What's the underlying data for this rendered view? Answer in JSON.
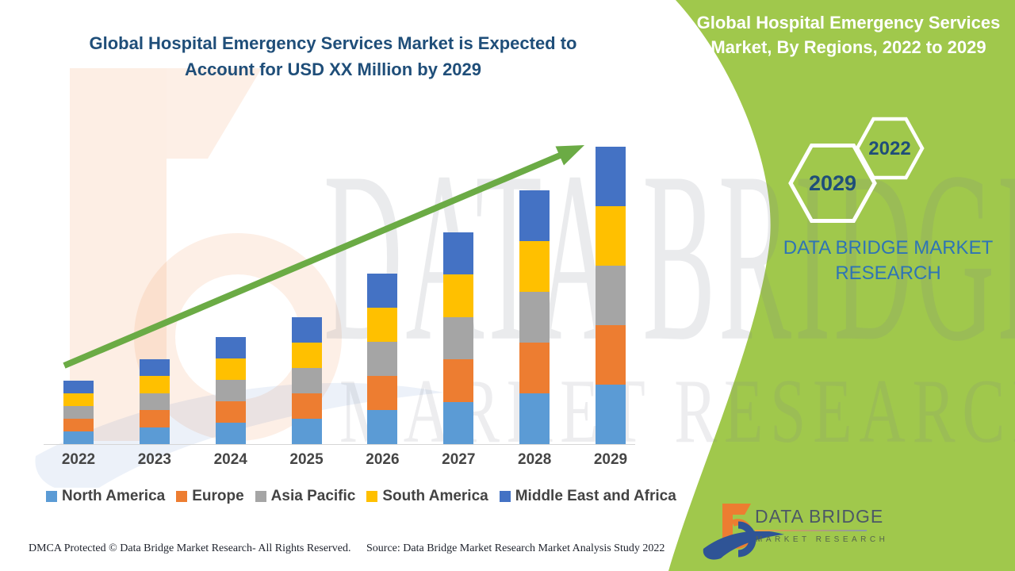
{
  "left_title": {
    "lines": [
      "Global Hospital Emergency Services Market is Expected to",
      "Account for USD XX Million by 2029"
    ],
    "color": "#1F4E79"
  },
  "band": {
    "color": "#A0C84C",
    "title_lines": [
      "Global Hospital Emergency Services",
      "Market, By Regions, 2022 to 2029"
    ],
    "hexagons": [
      {
        "year": "2029"
      },
      {
        "year": "2022"
      }
    ],
    "brand_lines": [
      "DATA BRIDGE MARKET",
      "RESEARCH"
    ],
    "brand_color": "#2E74B5"
  },
  "watermark": {
    "line1": "DATA BRIDGE",
    "line2": "MARKET RESEARCH"
  },
  "chart_data": {
    "type": "bar",
    "stacked": true,
    "title": "Global Hospital Emergency Services Market, By Regions, 2022 to 2029",
    "categories": [
      "2022",
      "2023",
      "2024",
      "2025",
      "2026",
      "2027",
      "2028",
      "2029"
    ],
    "series": [
      {
        "name": "North America",
        "color": "#5B9BD5",
        "values": [
          3.2,
          4.3,
          5.4,
          6.4,
          8.6,
          10.7,
          12.8,
          15
        ]
      },
      {
        "name": "Europe",
        "color": "#ED7D31",
        "values": [
          3.2,
          4.3,
          5.4,
          6.4,
          8.6,
          10.7,
          12.8,
          15
        ]
      },
      {
        "name": "Asia Pacific",
        "color": "#A5A5A5",
        "values": [
          3.2,
          4.3,
          5.4,
          6.4,
          8.6,
          10.7,
          12.8,
          15
        ]
      },
      {
        "name": "South America",
        "color": "#FFC000",
        "values": [
          3.2,
          4.3,
          5.4,
          6.4,
          8.6,
          10.7,
          12.8,
          15
        ]
      },
      {
        "name": "Middle East and Africa",
        "color": "#4472C4",
        "values": [
          3.2,
          4.3,
          5.4,
          6.4,
          8.6,
          10.7,
          12.8,
          15
        ]
      }
    ],
    "value_note": "relative index estimated from bar heights; actual values shown as USD XX Million (undisclosed)",
    "value_axis": "hidden",
    "grid": "off",
    "legend_position": "bottom",
    "trend_arrow": true,
    "trend_arrow_color": "#6BAB45"
  },
  "footer": {
    "dmca": "DMCA Protected © Data Bridge Market Research- All Rights Reserved.",
    "source": "Source: Data Bridge Market Research Market Analysis Study 2022"
  },
  "logo": {
    "title": "DATA BRIDGE",
    "subtitle": "MARKET RESEARCH"
  }
}
